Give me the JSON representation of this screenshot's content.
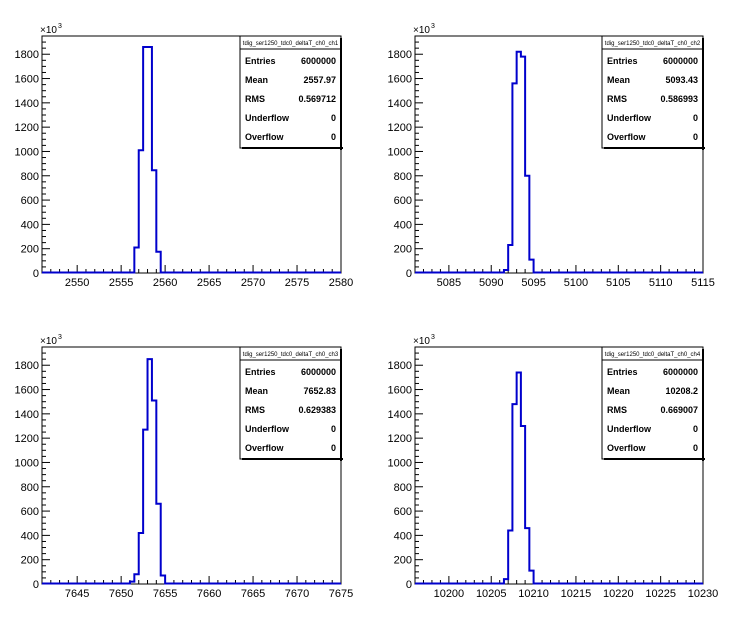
{
  "colors": {
    "histogram": "#0000cc",
    "frame": "#000000",
    "background": "#ffffff"
  },
  "y_multiplier": {
    "base": "×10",
    "exponent": "3"
  },
  "chart_data": [
    {
      "type": "bar",
      "name": "tdig_ser1250_tdc0_deltaT_ch0_ch1",
      "xlim": [
        2546,
        2580
      ],
      "ylim": [
        0,
        1950
      ],
      "x_ticks": [
        2550,
        2555,
        2560,
        2565,
        2570,
        2575,
        2580
      ],
      "y_ticks": [
        0,
        200,
        400,
        600,
        800,
        1000,
        1200,
        1400,
        1600,
        1800
      ],
      "bin_edges": [
        2556.5,
        2557.0,
        2557.5,
        2558.5,
        2559.0,
        2559.5
      ],
      "values": [
        210,
        1010,
        1860,
        845,
        175
      ],
      "stats": [
        {
          "key": "Entries",
          "value": "6000000"
        },
        {
          "key": "Mean",
          "value": "2557.97"
        },
        {
          "key": "RMS",
          "value": "0.569712"
        },
        {
          "key": "Underflow",
          "value": "0"
        },
        {
          "key": "Overflow",
          "value": "0"
        }
      ]
    },
    {
      "type": "bar",
      "name": "tdig_ser1250_tdc0_deltaT_ch0_ch2",
      "xlim": [
        5081,
        5115
      ],
      "ylim": [
        0,
        1950
      ],
      "x_ticks": [
        5085,
        5090,
        5095,
        5100,
        5105,
        5110,
        5115
      ],
      "y_ticks": [
        0,
        200,
        400,
        600,
        800,
        1000,
        1200,
        1400,
        1600,
        1800
      ],
      "bin_edges": [
        5091.5,
        5092.0,
        5092.5,
        5093.0,
        5093.5,
        5094.0,
        5094.5,
        5095.0
      ],
      "values": [
        25,
        230,
        1560,
        1820,
        1780,
        800,
        110
      ],
      "stats": [
        {
          "key": "Entries",
          "value": "6000000"
        },
        {
          "key": "Mean",
          "value": "5093.43"
        },
        {
          "key": "RMS",
          "value": "0.586993"
        },
        {
          "key": "Underflow",
          "value": "0"
        },
        {
          "key": "Overflow",
          "value": "0"
        }
      ]
    },
    {
      "type": "bar",
      "name": "tdig_ser1250_tdc0_deltaT_ch0_ch3",
      "xlim": [
        7641,
        7675
      ],
      "ylim": [
        0,
        1950
      ],
      "x_ticks": [
        7645,
        7650,
        7655,
        7660,
        7665,
        7670,
        7675
      ],
      "y_ticks": [
        0,
        200,
        400,
        600,
        800,
        1000,
        1200,
        1400,
        1600,
        1800
      ],
      "bin_edges": [
        7651.0,
        7651.5,
        7652.0,
        7652.5,
        7653.0,
        7653.5,
        7654.0,
        7654.5,
        7655.0
      ],
      "values": [
        20,
        80,
        420,
        1270,
        1850,
        1510,
        660,
        70
      ],
      "stats": [
        {
          "key": "Entries",
          "value": "6000000"
        },
        {
          "key": "Mean",
          "value": "7652.83"
        },
        {
          "key": "RMS",
          "value": "0.629383"
        },
        {
          "key": "Underflow",
          "value": "0"
        },
        {
          "key": "Overflow",
          "value": "0"
        }
      ]
    },
    {
      "type": "bar",
      "name": "tdig_ser1250_tdc0_deltaT_ch0_ch4",
      "xlim": [
        10196,
        10230
      ],
      "ylim": [
        0,
        1950
      ],
      "x_ticks": [
        10200,
        10205,
        10210,
        10215,
        10220,
        10225,
        10230
      ],
      "y_ticks": [
        0,
        200,
        400,
        600,
        800,
        1000,
        1200,
        1400,
        1600,
        1800
      ],
      "bin_edges": [
        10206.5,
        10207.0,
        10207.5,
        10208.0,
        10208.5,
        10209.0,
        10209.5,
        10210.0
      ],
      "values": [
        40,
        440,
        1480,
        1740,
        1300,
        460,
        110
      ],
      "stats": [
        {
          "key": "Entries",
          "value": "6000000"
        },
        {
          "key": "Mean",
          "value": "10208.2"
        },
        {
          "key": "RMS",
          "value": "0.669007"
        },
        {
          "key": "Underflow",
          "value": "0"
        },
        {
          "key": "Overflow",
          "value": "0"
        }
      ]
    }
  ]
}
